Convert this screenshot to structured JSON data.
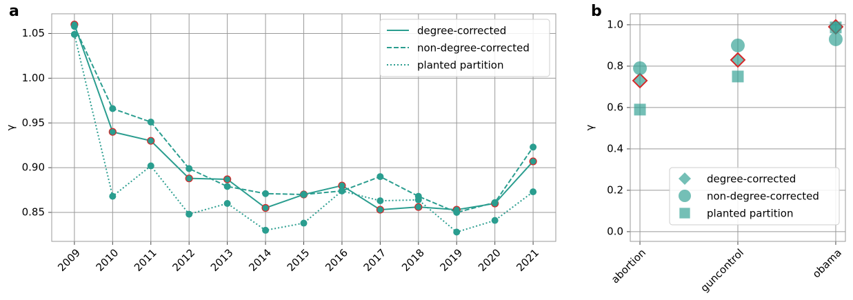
{
  "chart_data": [
    {
      "type": "line",
      "panel_label": "a",
      "ylabel": "γ",
      "categories": [
        "2009",
        "2010",
        "2011",
        "2012",
        "2013",
        "2014",
        "2015",
        "2016",
        "2017",
        "2018",
        "2019",
        "2020",
        "2021"
      ],
      "series": [
        {
          "name": "degree-corrected",
          "color": "#2a9d8f",
          "linestyle": "solid",
          "marker_edge": "#d62728",
          "values": [
            1.06,
            0.94,
            0.93,
            0.888,
            0.887,
            0.855,
            0.87,
            0.88,
            0.853,
            0.856,
            0.853,
            0.86,
            0.907
          ]
        },
        {
          "name": "non-degree-corrected",
          "color": "#2a9d8f",
          "linestyle": "dashed",
          "values": [
            1.058,
            0.966,
            0.951,
            0.899,
            0.879,
            0.871,
            0.87,
            0.874,
            0.89,
            0.868,
            0.85,
            0.861,
            0.923
          ]
        },
        {
          "name": "planted partition",
          "color": "#2a9d8f",
          "linestyle": "dotted",
          "values": [
            1.049,
            0.868,
            0.902,
            0.848,
            0.86,
            0.83,
            0.838,
            0.874,
            0.863,
            0.864,
            0.828,
            0.841,
            0.873
          ]
        }
      ],
      "ylim": [
        0.8176,
        1.072
      ],
      "yticks": [
        0.85,
        {
          "value": 0.9,
          "label": "0.90"
        },
        0.95,
        {
          "value": 1,
          "label": "1.00"
        },
        1.05
      ],
      "grid": true,
      "legend": "upper right"
    },
    {
      "type": "scatter",
      "panel_label": "b",
      "ylabel": "γ",
      "categories": [
        "abortion",
        "guncontrol",
        "obama"
      ],
      "series": [
        {
          "name": "degree-corrected",
          "color": "#2a9d8f",
          "marker": "diamond",
          "marker_edge": "#d62728",
          "values": [
            0.73,
            0.83,
            0.99
          ]
        },
        {
          "name": "non-degree-corrected",
          "color": "#2a9d8f",
          "marker": "circle",
          "values": [
            0.79,
            0.9,
            0.93
          ]
        },
        {
          "name": "planted partition",
          "color": "#2a9d8f",
          "marker": "square",
          "values": [
            0.59,
            0.75,
            0.987
          ]
        }
      ],
      "ylim": [
        -0.047,
        1.053
      ],
      "yticks": [
        {
          "value": 0,
          "label": "0.0"
        },
        0.2,
        0.4,
        0.6,
        0.8,
        {
          "value": 1,
          "label": "1.0"
        }
      ],
      "grid": true,
      "legend": "lower right"
    }
  ]
}
